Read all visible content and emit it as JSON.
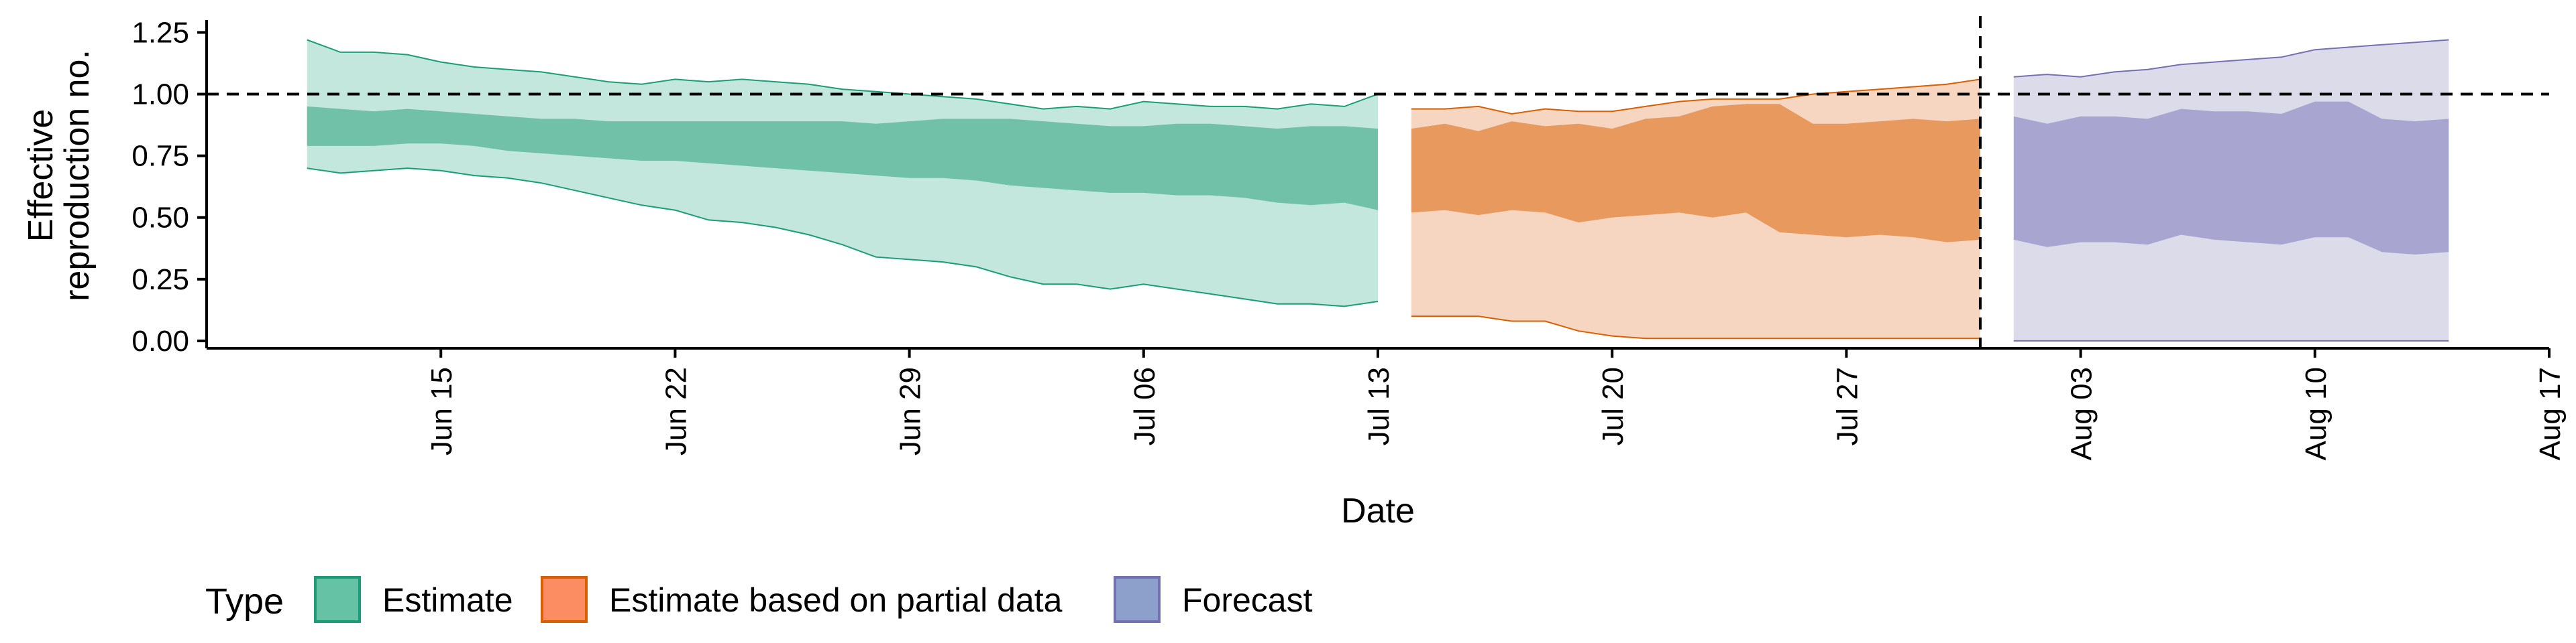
{
  "chart_data": {
    "type": "area",
    "title": "",
    "xlabel": "Date",
    "ylabel_lines": [
      "Effective",
      "reproduction no."
    ],
    "xlim": [
      "2020-06-08",
      "2020-08-17"
    ],
    "ylim": [
      -0.03,
      1.3
    ],
    "y_ticks": [
      {
        "value": 0,
        "label": "0.00"
      },
      {
        "value": 0.25,
        "label": "0.25"
      },
      {
        "value": 0.5,
        "label": "0.50"
      },
      {
        "value": 0.75,
        "label": "0.75"
      },
      {
        "value": 1.0,
        "label": "1.00"
      },
      {
        "value": 1.25,
        "label": "1.25"
      }
    ],
    "x_ticks": [
      {
        "date": "2020-06-15",
        "label": "Jun 15"
      },
      {
        "date": "2020-06-22",
        "label": "Jun 22"
      },
      {
        "date": "2020-06-29",
        "label": "Jun 29"
      },
      {
        "date": "2020-07-06",
        "label": "Jul 06"
      },
      {
        "date": "2020-07-13",
        "label": "Jul 13"
      },
      {
        "date": "2020-07-20",
        "label": "Jul 20"
      },
      {
        "date": "2020-07-27",
        "label": "Jul 27"
      },
      {
        "date": "2020-08-03",
        "label": "Aug 03"
      },
      {
        "date": "2020-08-10",
        "label": "Aug 10"
      },
      {
        "date": "2020-08-17",
        "label": "Aug 17"
      }
    ],
    "reference_lines": {
      "horizontal_y": 1.0,
      "vertical_date": "2020-07-31",
      "style": "dashed"
    },
    "grid": false,
    "legend": {
      "title": "Type",
      "position": "bottom-left",
      "entries": [
        {
          "label": "Estimate",
          "fill": "#66c2a5",
          "stroke": "#1b9e77"
        },
        {
          "label": "Estimate based on partial data",
          "fill": "#fc8d62",
          "stroke": "#d95f02"
        },
        {
          "label": "Forecast",
          "fill": "#8da0cb",
          "stroke": "#7570b3"
        }
      ]
    },
    "series": [
      {
        "name": "Estimate",
        "colors": {
          "outer": "#c3e7dc",
          "inner": "#70c1a7",
          "stroke": "#1b9e77"
        },
        "x": [
          "2020-06-11",
          "2020-06-12",
          "2020-06-13",
          "2020-06-14",
          "2020-06-15",
          "2020-06-16",
          "2020-06-17",
          "2020-06-18",
          "2020-06-19",
          "2020-06-20",
          "2020-06-21",
          "2020-06-22",
          "2020-06-23",
          "2020-06-24",
          "2020-06-25",
          "2020-06-26",
          "2020-06-27",
          "2020-06-28",
          "2020-06-29",
          "2020-06-30",
          "2020-07-01",
          "2020-07-02",
          "2020-07-03",
          "2020-07-04",
          "2020-07-05",
          "2020-07-06",
          "2020-07-07",
          "2020-07-08",
          "2020-07-09",
          "2020-07-10",
          "2020-07-11",
          "2020-07-12",
          "2020-07-13"
        ],
        "outer_low": [
          0.7,
          0.68,
          0.69,
          0.7,
          0.69,
          0.67,
          0.66,
          0.64,
          0.61,
          0.58,
          0.55,
          0.53,
          0.49,
          0.48,
          0.46,
          0.43,
          0.39,
          0.34,
          0.33,
          0.32,
          0.3,
          0.26,
          0.23,
          0.23,
          0.21,
          0.23,
          0.21,
          0.19,
          0.17,
          0.15,
          0.15,
          0.14,
          0.16
        ],
        "inner_low": [
          0.79,
          0.79,
          0.79,
          0.8,
          0.8,
          0.79,
          0.77,
          0.76,
          0.75,
          0.74,
          0.73,
          0.73,
          0.72,
          0.71,
          0.7,
          0.69,
          0.68,
          0.67,
          0.66,
          0.66,
          0.65,
          0.63,
          0.62,
          0.61,
          0.6,
          0.6,
          0.59,
          0.59,
          0.58,
          0.56,
          0.55,
          0.56,
          0.53
        ],
        "inner_high": [
          0.95,
          0.94,
          0.93,
          0.94,
          0.93,
          0.92,
          0.91,
          0.9,
          0.9,
          0.89,
          0.89,
          0.89,
          0.89,
          0.89,
          0.89,
          0.89,
          0.89,
          0.88,
          0.89,
          0.9,
          0.9,
          0.9,
          0.89,
          0.88,
          0.87,
          0.87,
          0.88,
          0.88,
          0.87,
          0.86,
          0.87,
          0.87,
          0.86
        ],
        "outer_high": [
          1.22,
          1.17,
          1.17,
          1.16,
          1.13,
          1.11,
          1.1,
          1.09,
          1.07,
          1.05,
          1.04,
          1.06,
          1.05,
          1.06,
          1.05,
          1.04,
          1.02,
          1.01,
          1.0,
          0.99,
          0.98,
          0.96,
          0.94,
          0.95,
          0.94,
          0.97,
          0.96,
          0.95,
          0.95,
          0.94,
          0.96,
          0.95,
          1.0
        ]
      },
      {
        "name": "Estimate based on partial data",
        "colors": {
          "outer": "#f6d6c0",
          "inner": "#e8995e",
          "stroke": "#d95f02"
        },
        "x": [
          "2020-07-14",
          "2020-07-15",
          "2020-07-16",
          "2020-07-17",
          "2020-07-18",
          "2020-07-19",
          "2020-07-20",
          "2020-07-21",
          "2020-07-22",
          "2020-07-23",
          "2020-07-24",
          "2020-07-25",
          "2020-07-26",
          "2020-07-27",
          "2020-07-28",
          "2020-07-29",
          "2020-07-30",
          "2020-07-31"
        ],
        "outer_low": [
          0.1,
          0.1,
          0.1,
          0.08,
          0.08,
          0.04,
          0.02,
          0.01,
          0.01,
          0.01,
          0.01,
          0.01,
          0.01,
          0.01,
          0.01,
          0.01,
          0.01,
          0.01
        ],
        "inner_low": [
          0.52,
          0.53,
          0.51,
          0.53,
          0.52,
          0.48,
          0.5,
          0.51,
          0.52,
          0.5,
          0.52,
          0.44,
          0.43,
          0.42,
          0.43,
          0.42,
          0.4,
          0.41
        ],
        "inner_high": [
          0.86,
          0.88,
          0.85,
          0.89,
          0.87,
          0.88,
          0.86,
          0.9,
          0.91,
          0.95,
          0.96,
          0.96,
          0.88,
          0.88,
          0.89,
          0.9,
          0.89,
          0.9
        ],
        "outer_high": [
          0.94,
          0.94,
          0.95,
          0.92,
          0.94,
          0.93,
          0.93,
          0.95,
          0.97,
          0.98,
          0.98,
          0.98,
          1.0,
          1.01,
          1.02,
          1.03,
          1.04,
          1.06
        ]
      },
      {
        "name": "Forecast",
        "colors": {
          "outer": "#dcdbea",
          "inner": "#a9a5d1",
          "stroke": "#7570b3"
        },
        "x": [
          "2020-08-01",
          "2020-08-02",
          "2020-08-03",
          "2020-08-04",
          "2020-08-05",
          "2020-08-06",
          "2020-08-07",
          "2020-08-08",
          "2020-08-09",
          "2020-08-10",
          "2020-08-11",
          "2020-08-12",
          "2020-08-13",
          "2020-08-14"
        ],
        "outer_low": [
          0,
          0,
          0,
          0,
          0,
          0,
          0,
          0,
          0,
          0,
          0,
          0,
          0,
          0
        ],
        "inner_low": [
          0.41,
          0.38,
          0.4,
          0.4,
          0.39,
          0.43,
          0.41,
          0.4,
          0.39,
          0.42,
          0.42,
          0.36,
          0.35,
          0.36
        ],
        "inner_high": [
          0.91,
          0.88,
          0.91,
          0.91,
          0.9,
          0.94,
          0.93,
          0.93,
          0.92,
          0.97,
          0.97,
          0.9,
          0.89,
          0.9
        ],
        "outer_high": [
          1.07,
          1.08,
          1.07,
          1.09,
          1.1,
          1.12,
          1.13,
          1.14,
          1.15,
          1.18,
          1.19,
          1.2,
          1.21,
          1.22
        ]
      }
    ]
  }
}
